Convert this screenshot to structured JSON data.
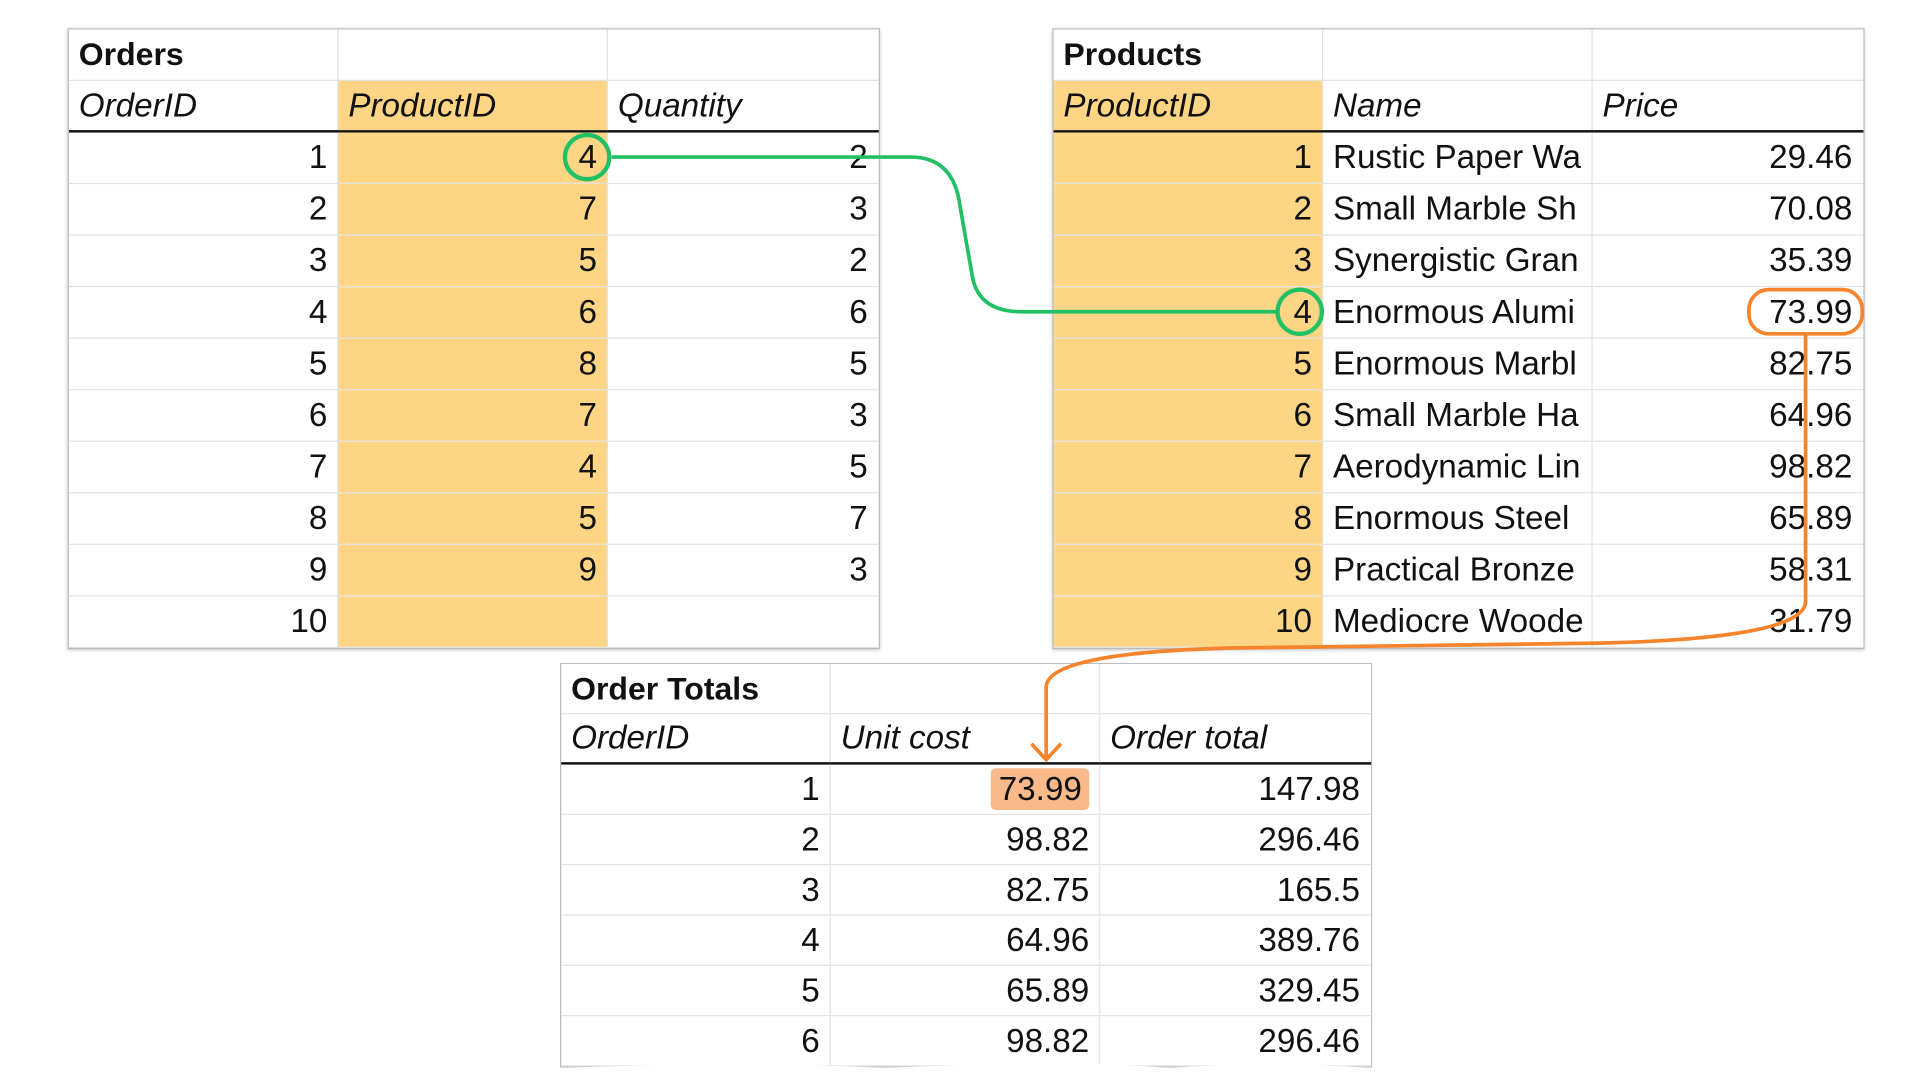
{
  "orders": {
    "title": "Orders",
    "headers": [
      "OrderID",
      "ProductID",
      "Quantity"
    ],
    "rows": [
      [
        "1",
        "4",
        "2"
      ],
      [
        "2",
        "7",
        "3"
      ],
      [
        "3",
        "5",
        "2"
      ],
      [
        "4",
        "6",
        "6"
      ],
      [
        "5",
        "8",
        "5"
      ],
      [
        "6",
        "7",
        "3"
      ],
      [
        "7",
        "4",
        "5"
      ],
      [
        "8",
        "5",
        "7"
      ],
      [
        "9",
        "9",
        "3"
      ],
      [
        "10",
        "",
        ""
      ]
    ]
  },
  "products": {
    "title": "Products",
    "headers": [
      "ProductID",
      "Name",
      "Price"
    ],
    "rows": [
      [
        "1",
        "Rustic Paper Wa",
        "29.46"
      ],
      [
        "2",
        "Small Marble Sh",
        "70.08"
      ],
      [
        "3",
        "Synergistic Gran",
        "35.39"
      ],
      [
        "4",
        "Enormous Alumi",
        "73.99"
      ],
      [
        "5",
        "Enormous Marbl",
        "82.75"
      ],
      [
        "6",
        "Small Marble Ha",
        "64.96"
      ],
      [
        "7",
        "Aerodynamic Lin",
        "98.82"
      ],
      [
        "8",
        "Enormous Steel",
        "65.89"
      ],
      [
        "9",
        "Practical Bronze",
        "58.31"
      ],
      [
        "10",
        "Mediocre Woode",
        "31.79"
      ]
    ]
  },
  "totals": {
    "title": "Order Totals",
    "headers": [
      "OrderID",
      "Unit cost",
      "Order total"
    ],
    "rows": [
      [
        "1",
        "73.99",
        "147.98"
      ],
      [
        "2",
        "98.82",
        "296.46"
      ],
      [
        "3",
        "82.75",
        "165.5"
      ],
      [
        "4",
        "64.96",
        "389.76"
      ],
      [
        "5",
        "65.89",
        "329.45"
      ],
      [
        "6",
        "98.82",
        "296.46"
      ]
    ]
  },
  "colors": {
    "key_column": "#fdd585",
    "lookup_link": "#22c064",
    "value_link": "#f5842c",
    "highlight": "#f9b98a"
  }
}
